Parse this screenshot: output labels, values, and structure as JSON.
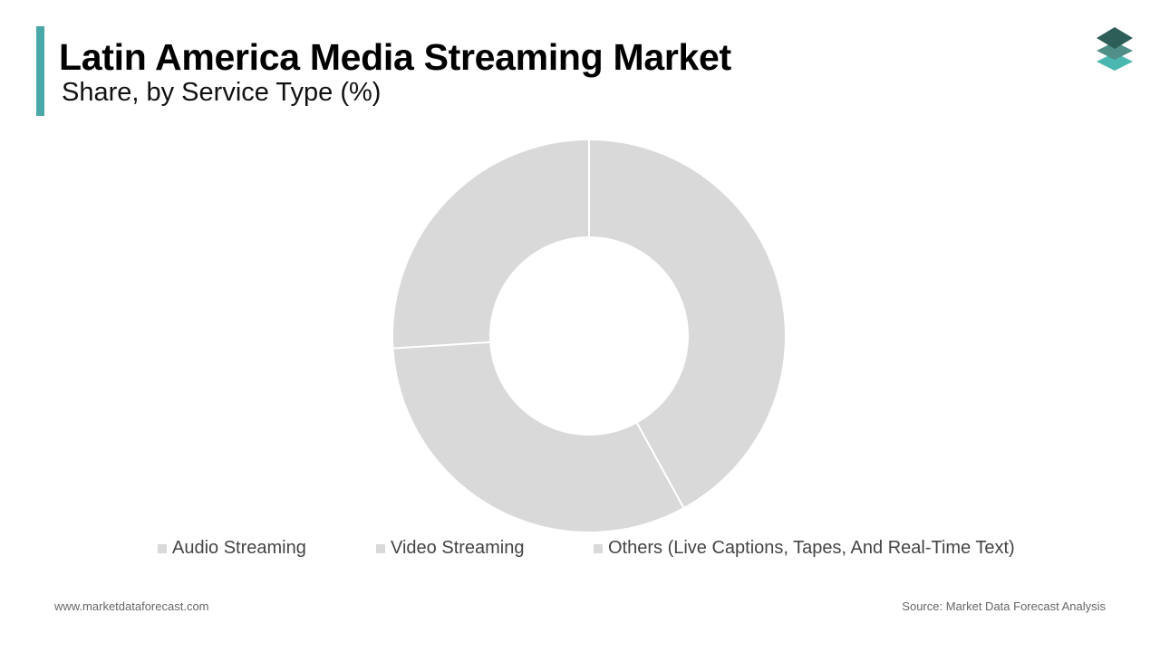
{
  "header": {
    "title": "Latin America Media Streaming Market",
    "subtitle": "Share, by Service Type (%)",
    "accent_color": "#4aa8a8"
  },
  "logo": {
    "icon": "stacked-layers-icon",
    "colors": [
      "#2e5e58",
      "#4f8f87",
      "#4ab7b0"
    ]
  },
  "chart_data": {
    "type": "pie",
    "donut": true,
    "categories": [
      "Audio Streaming",
      "Video Streaming",
      "Others (Live Captions, Tapes, And Real-Time Text)"
    ],
    "values": [
      42,
      32,
      26
    ],
    "colors": [
      "#d9d9d9",
      "#d9d9d9",
      "#d9d9d9"
    ],
    "legend_position": "bottom"
  },
  "footer": {
    "website": "www.marketdataforecast.com",
    "source": "Source: Market Data Forecast Analysis"
  }
}
